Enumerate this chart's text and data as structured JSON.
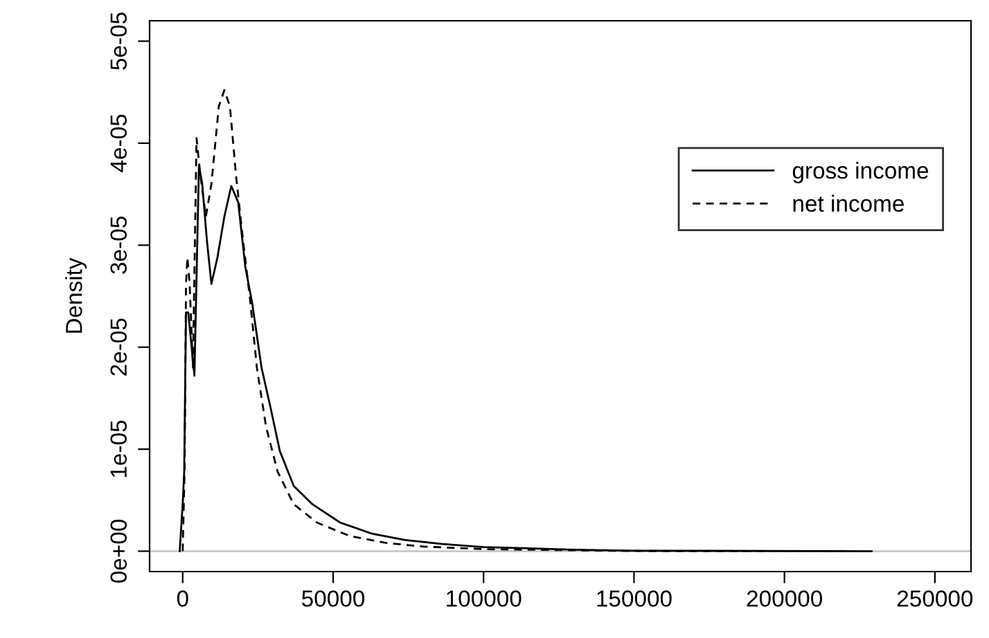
{
  "chart_data": {
    "type": "line",
    "ylabel": "Density",
    "xlim": [
      -11000,
      262000
    ],
    "ylim": [
      -2e-06,
      5.2e-05
    ],
    "xticks": [
      0,
      50000,
      100000,
      150000,
      200000,
      250000
    ],
    "yticks": [
      {
        "value": 0,
        "label": "0e+00"
      },
      {
        "value": 1e-05,
        "label": "1e-05"
      },
      {
        "value": 2e-05,
        "label": "2e-05"
      },
      {
        "value": 3e-05,
        "label": "3e-05"
      },
      {
        "value": 4e-05,
        "label": "4e-05"
      },
      {
        "value": 5e-05,
        "label": "5e-05"
      }
    ],
    "grid": false,
    "legend": "top right",
    "ref_lines": [
      {
        "axis": "y",
        "value": 0,
        "color": "#c8c8c8"
      }
    ],
    "series": [
      {
        "name": "gross income",
        "color": "#000000",
        "line_style": "solid",
        "x": [
          -1000,
          0,
          500,
          1100,
          1850,
          3900,
          5400,
          6500,
          8000,
          9550,
          11550,
          13850,
          16150,
          18450,
          20800,
          23100,
          26200,
          29250,
          32300,
          36900,
          43100,
          52350,
          63100,
          73900,
          86200,
          100000,
          130000,
          150000,
          229000
        ],
        "values": [
          0,
          4.6e-06,
          7.8e-06,
          2.34e-05,
          2.34e-05,
          1.72e-05,
          3.78e-05,
          3.6e-05,
          3.06e-05,
          2.62e-05,
          2.88e-05,
          3.28e-05,
          3.58e-05,
          3.42e-05,
          2.79e-05,
          2.43e-05,
          1.8e-05,
          1.4e-05,
          9.8e-06,
          6.4e-06,
          4.6e-06,
          2.8e-06,
          1.7e-06,
          1.1e-06,
          7e-07,
          4e-07,
          1.5e-07,
          5e-08,
          0
        ]
      },
      {
        "name": "net income",
        "color": "#000000",
        "line_style": "dashed",
        "x": [
          0,
          650,
          1100,
          1550,
          2300,
          3400,
          4600,
          5850,
          7700,
          9550,
          12000,
          13850,
          15700,
          17700,
          20000,
          22350,
          24650,
          27700,
          31550,
          36900,
          44650,
          55400,
          67700,
          80050,
          100000,
          150000,
          222000
        ],
        "values": [
          0,
          8.2e-06,
          2.61e-05,
          2.88e-05,
          2.63e-05,
          1.8e-05,
          4.05e-05,
          3.69e-05,
          3.28e-05,
          3.6e-05,
          4.36e-05,
          4.52e-05,
          4.36e-05,
          3.69e-05,
          3.06e-05,
          2.48e-05,
          1.8e-05,
          1.22e-05,
          7.8e-06,
          4.6e-06,
          2.8e-06,
          1.5e-06,
          8e-07,
          4.5e-07,
          2e-07,
          2e-08,
          0
        ]
      }
    ]
  }
}
